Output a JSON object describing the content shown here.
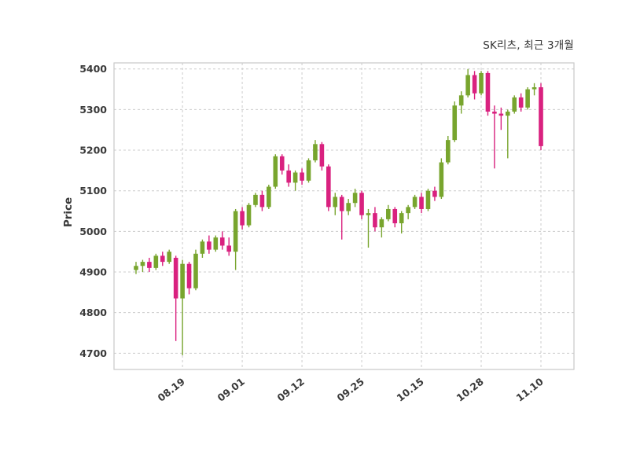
{
  "chart_data": {
    "type": "candlestick",
    "title": "SK리츠, 최근 3개월",
    "ylabel": "Price",
    "xlabel": "",
    "ylim": [
      4660,
      5415
    ],
    "yticks": [
      4700,
      4800,
      4900,
      5000,
      5100,
      5200,
      5300,
      5400
    ],
    "xticks": [
      {
        "label": "08.19",
        "index": 7
      },
      {
        "label": "09.01",
        "index": 16
      },
      {
        "label": "09.12",
        "index": 25
      },
      {
        "label": "09.25",
        "index": 34
      },
      {
        "label": "10.15",
        "index": 43
      },
      {
        "label": "10.28",
        "index": 52
      },
      {
        "label": "11.10",
        "index": 61
      }
    ],
    "grid": "dashed",
    "legend": "none",
    "up_color": "#78a52e",
    "down_color": "#d9217f",
    "candles_format": [
      "open",
      "high",
      "low",
      "close"
    ],
    "candles": [
      [
        4905,
        4925,
        4895,
        4915
      ],
      [
        4915,
        4930,
        4900,
        4925
      ],
      [
        4925,
        4935,
        4900,
        4910
      ],
      [
        4910,
        4945,
        4905,
        4940
      ],
      [
        4940,
        4950,
        4915,
        4925
      ],
      [
        4925,
        4955,
        4920,
        4950
      ],
      [
        4935,
        4940,
        4730,
        4835
      ],
      [
        4835,
        4930,
        4695,
        4920
      ],
      [
        4920,
        4925,
        4845,
        4860
      ],
      [
        4860,
        4955,
        4855,
        4945
      ],
      [
        4945,
        4980,
        4935,
        4975
      ],
      [
        4975,
        4990,
        4945,
        4955
      ],
      [
        4955,
        4990,
        4950,
        4985
      ],
      [
        4985,
        5000,
        4955,
        4965
      ],
      [
        4965,
        4985,
        4940,
        4950
      ],
      [
        4950,
        5055,
        4905,
        5050
      ],
      [
        5050,
        5060,
        5005,
        5015
      ],
      [
        5015,
        5070,
        5010,
        5065
      ],
      [
        5065,
        5095,
        5060,
        5090
      ],
      [
        5090,
        5100,
        5050,
        5060
      ],
      [
        5060,
        5115,
        5055,
        5110
      ],
      [
        5110,
        5190,
        5105,
        5185
      ],
      [
        5185,
        5190,
        5140,
        5150
      ],
      [
        5150,
        5165,
        5110,
        5120
      ],
      [
        5120,
        5150,
        5100,
        5145
      ],
      [
        5145,
        5155,
        5115,
        5125
      ],
      [
        5125,
        5180,
        5120,
        5175
      ],
      [
        5175,
        5225,
        5170,
        5215
      ],
      [
        5215,
        5220,
        5150,
        5160
      ],
      [
        5160,
        5165,
        5050,
        5060
      ],
      [
        5060,
        5095,
        5040,
        5085
      ],
      [
        5085,
        5090,
        4980,
        5050
      ],
      [
        5050,
        5080,
        5040,
        5070
      ],
      [
        5070,
        5105,
        5060,
        5095
      ],
      [
        5095,
        5100,
        5030,
        5040
      ],
      [
        5040,
        5055,
        4960,
        5045
      ],
      [
        5045,
        5060,
        5000,
        5010
      ],
      [
        5010,
        5035,
        4985,
        5030
      ],
      [
        5030,
        5065,
        5025,
        5055
      ],
      [
        5055,
        5060,
        5010,
        5020
      ],
      [
        5020,
        5050,
        4995,
        5045
      ],
      [
        5045,
        5065,
        5030,
        5060
      ],
      [
        5060,
        5090,
        5055,
        5085
      ],
      [
        5085,
        5095,
        5045,
        5055
      ],
      [
        5055,
        5105,
        5050,
        5100
      ],
      [
        5100,
        5110,
        5075,
        5085
      ],
      [
        5085,
        5180,
        5080,
        5170
      ],
      [
        5170,
        5235,
        5165,
        5225
      ],
      [
        5225,
        5320,
        5220,
        5310
      ],
      [
        5310,
        5345,
        5290,
        5335
      ],
      [
        5335,
        5400,
        5330,
        5385
      ],
      [
        5385,
        5395,
        5325,
        5340
      ],
      [
        5340,
        5395,
        5335,
        5390
      ],
      [
        5390,
        5395,
        5285,
        5295
      ],
      [
        5295,
        5310,
        5155,
        5290
      ],
      [
        5290,
        5305,
        5250,
        5285
      ],
      [
        5285,
        5300,
        5180,
        5295
      ],
      [
        5295,
        5335,
        5290,
        5330
      ],
      [
        5330,
        5340,
        5295,
        5305
      ],
      [
        5305,
        5355,
        5300,
        5350
      ],
      [
        5350,
        5365,
        5335,
        5355
      ],
      [
        5355,
        5365,
        5200,
        5210
      ]
    ]
  }
}
